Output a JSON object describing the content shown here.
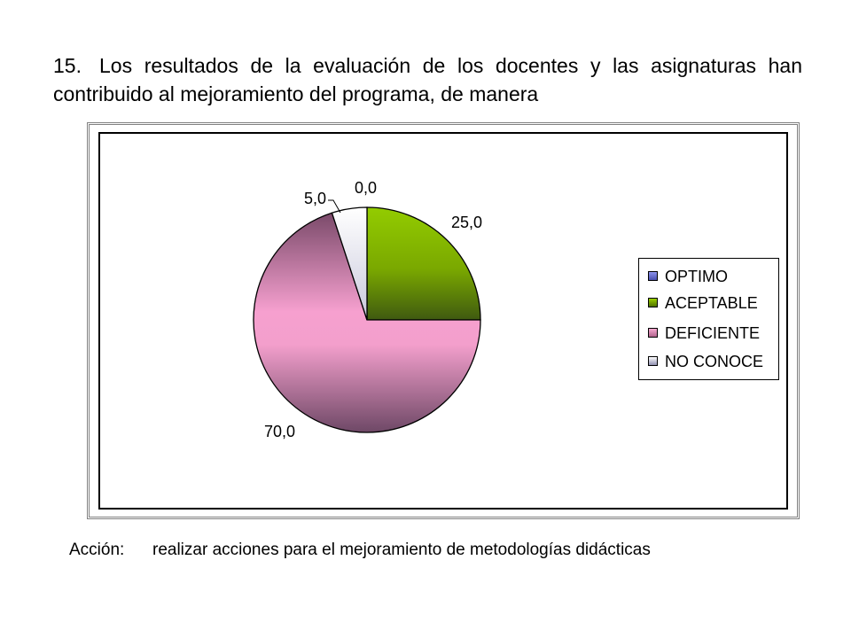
{
  "heading": {
    "number": "15.",
    "text": "Los resultados de la evaluación de los docentes y las asignaturas han contribuido al mejoramiento del programa, de manera"
  },
  "footer": {
    "label": "Acción:",
    "text": "realizar acciones para el mejoramiento de metodologías didácticas"
  },
  "chart_data": {
    "type": "pie",
    "categories": [
      "OPTIMO",
      "ACEPTABLE",
      "DEFICIENTE",
      "NO CONOCE"
    ],
    "values": [
      0.0,
      25.0,
      70.0,
      5.0
    ],
    "data_labels": [
      "0,0",
      "25,0",
      "70,0",
      "5,0"
    ],
    "colors": [
      "#7f86e0",
      "#8fc400",
      "#f5a0cc",
      "#eeeef6"
    ],
    "legend_position": "right",
    "title": ""
  }
}
